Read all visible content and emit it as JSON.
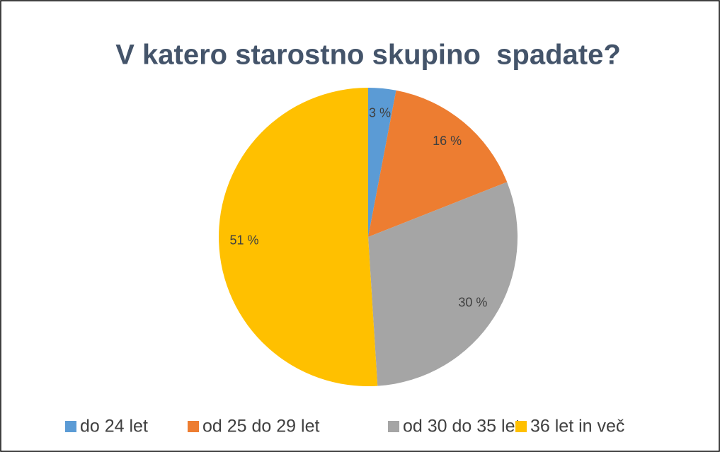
{
  "chart_data": {
    "type": "pie",
    "title": "V katero starostno skupino  spadate?",
    "categories": [
      "do 24 let",
      "od 25 do 29 let",
      "od 30 do 35 let",
      "36 let in več"
    ],
    "values": [
      3,
      16,
      30,
      51
    ],
    "value_labels": [
      "3 %",
      "16 %",
      "30 %",
      "51 %"
    ],
    "colors": [
      "#5b9bd5",
      "#ed7d31",
      "#a5a5a5",
      "#ffc000"
    ],
    "legend": "bottom"
  }
}
